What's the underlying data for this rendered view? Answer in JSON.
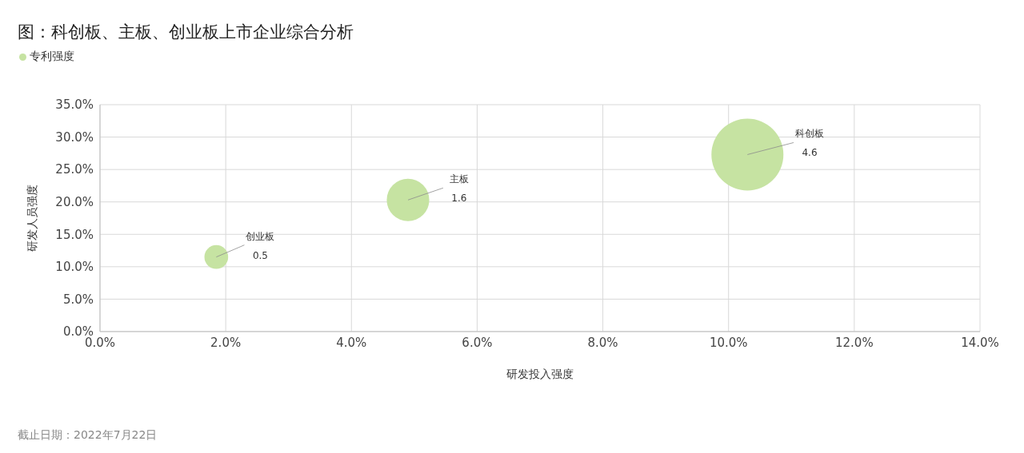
{
  "chart_data": {
    "type": "bubble",
    "title": "图：科创板、主板、创业板上市企业综合分析",
    "xlabel": "研发投入强度",
    "ylabel": "研发人员强度",
    "x": [
      10.3,
      4.9,
      1.85
    ],
    "series": [
      {
        "name": "专利强度",
        "color": "#c6e3a2",
        "values": [
          27.3,
          20.3,
          11.5
        ],
        "sizes": [
          4.6,
          1.6,
          0.5
        ],
        "value_labels": [
          "4.6",
          "1.6",
          "0.5"
        ]
      }
    ],
    "xlim": [
      0,
      14
    ],
    "xticks": [
      {
        "value": 0,
        "label": "0.0%"
      },
      {
        "value": 2,
        "label": "2.0%"
      },
      {
        "value": 4,
        "label": "4.0%"
      },
      {
        "value": 6,
        "label": "6.0%"
      },
      {
        "value": 8,
        "label": "8.0%"
      },
      {
        "value": 10,
        "label": "10.0%"
      },
      {
        "value": 12,
        "label": "12.0%"
      },
      {
        "value": 14,
        "label": "14.0%"
      }
    ],
    "ylim": [
      0,
      35
    ],
    "yticks": [
      {
        "value": 0,
        "label": "0.0%"
      },
      {
        "value": 5,
        "label": "5.0%"
      },
      {
        "value": 10,
        "label": "10.0%"
      },
      {
        "value": 15,
        "label": "15.0%"
      },
      {
        "value": 20,
        "label": "20.0%"
      },
      {
        "value": 25,
        "label": "25.0%"
      },
      {
        "value": 30,
        "label": "30.0%"
      },
      {
        "value": 35,
        "label": "35.0%"
      }
    ],
    "grid": true,
    "legend": "top left",
    "annotations": [
      {
        "text": "科创板",
        "x": 10.3,
        "y": 27.3
      },
      {
        "text": "主板",
        "x": 4.9,
        "y": 20.3
      },
      {
        "text": "创业板",
        "x": 1.85,
        "y": 11.5
      },
      "截止日期：2022年7月22日"
    ]
  }
}
